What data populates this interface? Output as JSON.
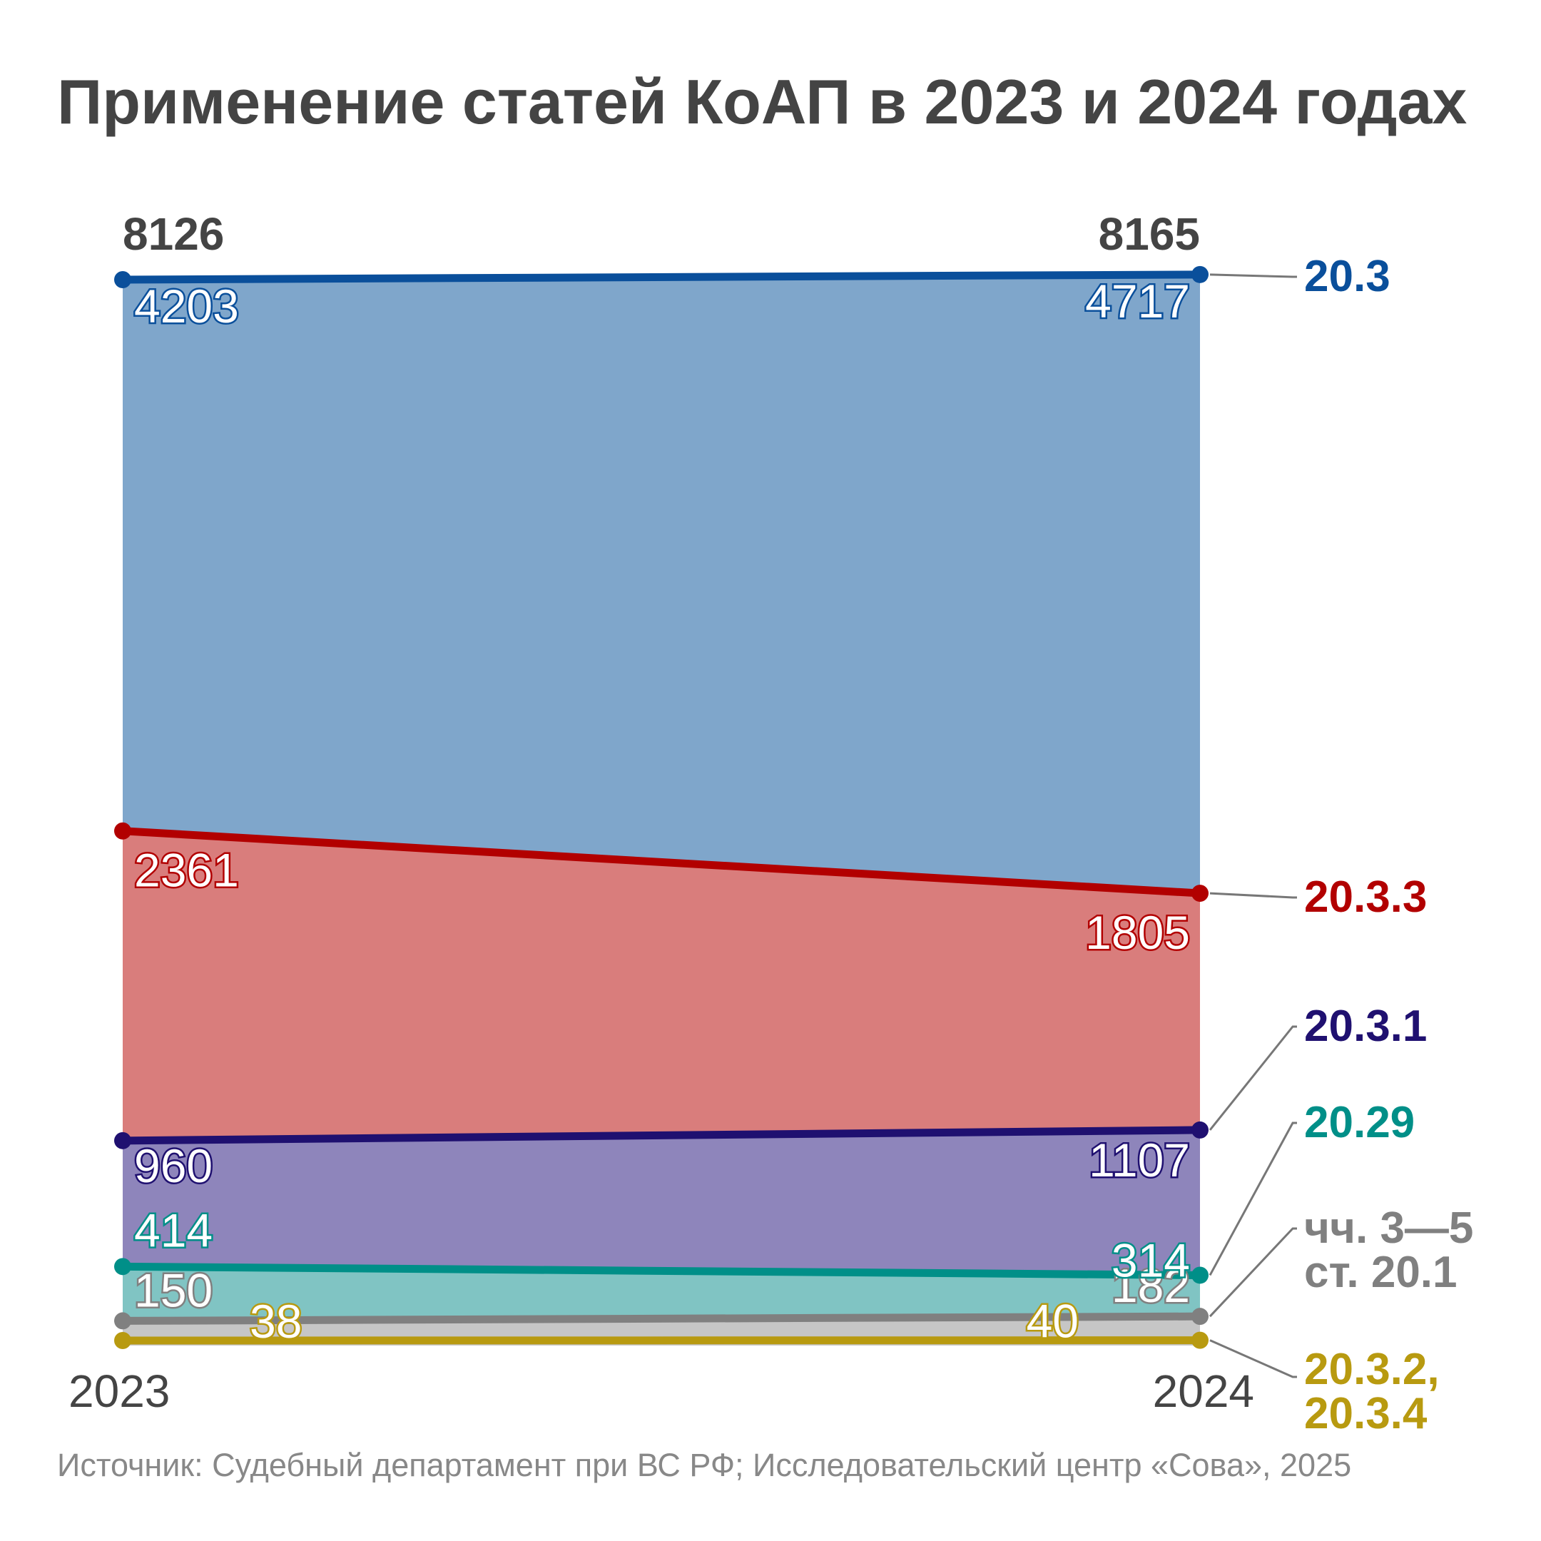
{
  "title": "Применение статей КоАП в 2023 и 2024 годах",
  "source": "Источник: Судебный департамент при ВС РФ; Исследовательский центр «Сова», 2025",
  "chart_data": {
    "type": "area",
    "stacked": true,
    "x": [
      "2023",
      "2024"
    ],
    "totals": [
      8126,
      8165
    ],
    "series": [
      {
        "name": "20.3.2, 20.3.4",
        "label_lines": [
          "20.3.2,",
          "20.3.4"
        ],
        "values": [
          38,
          40
        ],
        "color": "#b89a10",
        "fill": "#c6c6c6"
      },
      {
        "name": "чч. 3—5 ст. 20.1",
        "label_lines": [
          "чч. 3—5",
          "ст. 20.1"
        ],
        "values": [
          150,
          182
        ],
        "color": "#808080",
        "fill": "#c6c6c6"
      },
      {
        "name": "20.29",
        "label_lines": [
          "20.29"
        ],
        "values": [
          414,
          314
        ],
        "color": "#008f88",
        "fill": "#80c4c3"
      },
      {
        "name": "20.3.1",
        "label_lines": [
          "20.3.1"
        ],
        "values": [
          960,
          1107
        ],
        "color": "#1f1070",
        "fill": "#8e85bb"
      },
      {
        "name": "20.3.3",
        "label_lines": [
          "20.3.3"
        ],
        "values": [
          2361,
          1805
        ],
        "color": "#b20000",
        "fill": "#d97d7c"
      },
      {
        "name": "20.3",
        "label_lines": [
          "20.3"
        ],
        "values": [
          4203,
          4717
        ],
        "color": "#0a4f9b",
        "fill": "#7fa6cb"
      }
    ]
  }
}
